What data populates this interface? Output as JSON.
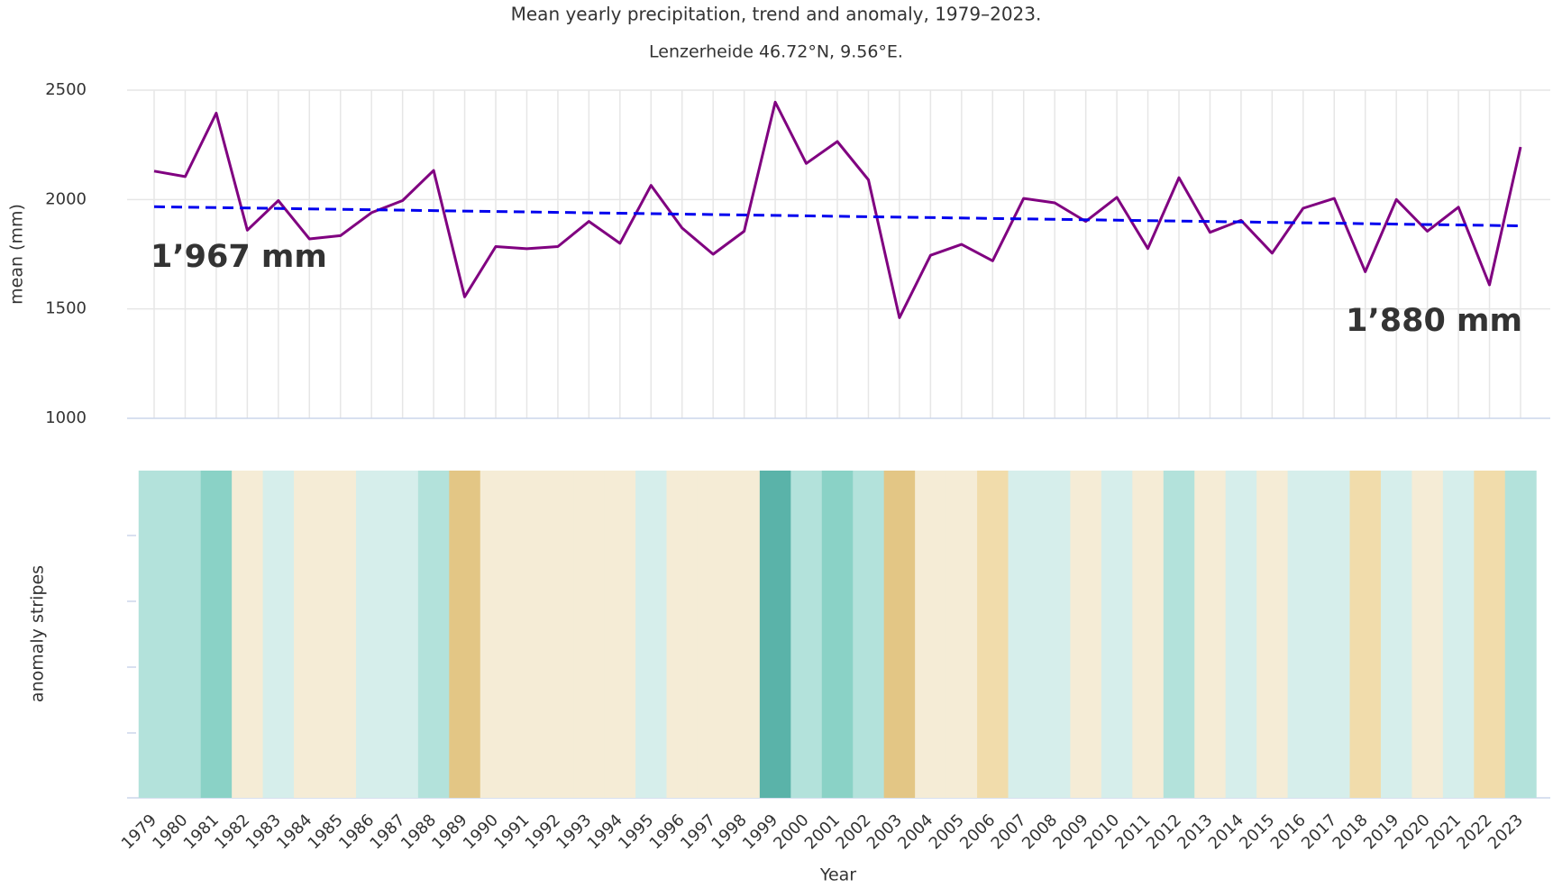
{
  "chart_data": {
    "type": "line",
    "title": "Mean yearly precipitation, trend and anomaly, 1979–2023.",
    "subtitle": "Lenzerheide 46.72°N, 9.56°E.",
    "y_label": "mean (mm)",
    "stripes_label": "anomaly stripes",
    "x_label": "Year",
    "x": [
      1979,
      1980,
      1981,
      1982,
      1983,
      1984,
      1985,
      1986,
      1987,
      1988,
      1989,
      1990,
      1991,
      1992,
      1993,
      1994,
      1995,
      1996,
      1997,
      1998,
      1999,
      2000,
      2001,
      2002,
      2003,
      2004,
      2005,
      2006,
      2007,
      2008,
      2009,
      2010,
      2011,
      2012,
      2013,
      2014,
      2015,
      2016,
      2017,
      2018,
      2019,
      2020,
      2021,
      2022,
      2023
    ],
    "series": [
      {
        "name": "mean",
        "color": "#800080",
        "values": [
          2130,
          2105,
          2395,
          1860,
          1995,
          1820,
          1835,
          1940,
          1995,
          2133,
          1555,
          1785,
          1775,
          1785,
          1900,
          1800,
          2065,
          1870,
          1750,
          1855,
          2445,
          2165,
          2265,
          2090,
          1460,
          1745,
          1795,
          1720,
          2005,
          1985,
          1900,
          2010,
          1776,
          2100,
          1850,
          1905,
          1755,
          1960,
          2005,
          1670,
          2000,
          1855,
          1965,
          1610,
          2240
        ]
      },
      {
        "name": "trend",
        "color": "#0000ee",
        "dashed": true,
        "x": [
          1979,
          2023
        ],
        "values": [
          1967,
          1880
        ],
        "value_labels": [
          "1’967 mm",
          "1’880 mm"
        ],
        "label_color": "#3333cc"
      }
    ],
    "stripe_colors": [
      "#b3e2db",
      "#b3e2db",
      "#8ad2c6",
      "#f5ecd6",
      "#d6eeeb",
      "#f5ecd6",
      "#f5ecd6",
      "#d6eeeb",
      "#d6eeeb",
      "#b3e2db",
      "#e3c685",
      "#f5ecd6",
      "#f5ecd6",
      "#f5ecd6",
      "#f5ecd6",
      "#f5ecd6",
      "#d6eeeb",
      "#f5ecd6",
      "#f5ecd6",
      "#f5ecd6",
      "#5ab3a9",
      "#b3e2db",
      "#8ad2c6",
      "#b3e2db",
      "#e3c685",
      "#f5ecd6",
      "#f5ecd6",
      "#f1dcab",
      "#d6eeeb",
      "#d6eeeb",
      "#f5ecd6",
      "#d6eeeb",
      "#f5ecd6",
      "#b3e2db",
      "#f5ecd6",
      "#d6eeeb",
      "#f5ecd6",
      "#d6eeeb",
      "#d6eeeb",
      "#f1dcab",
      "#d6eeeb",
      "#f5ecd6",
      "#d6eeeb",
      "#f1dcab",
      "#b3e2db"
    ],
    "ylim": [
      1000,
      2500
    ],
    "yticks": [
      1000,
      1500,
      2000,
      2500
    ],
    "grid": true
  }
}
